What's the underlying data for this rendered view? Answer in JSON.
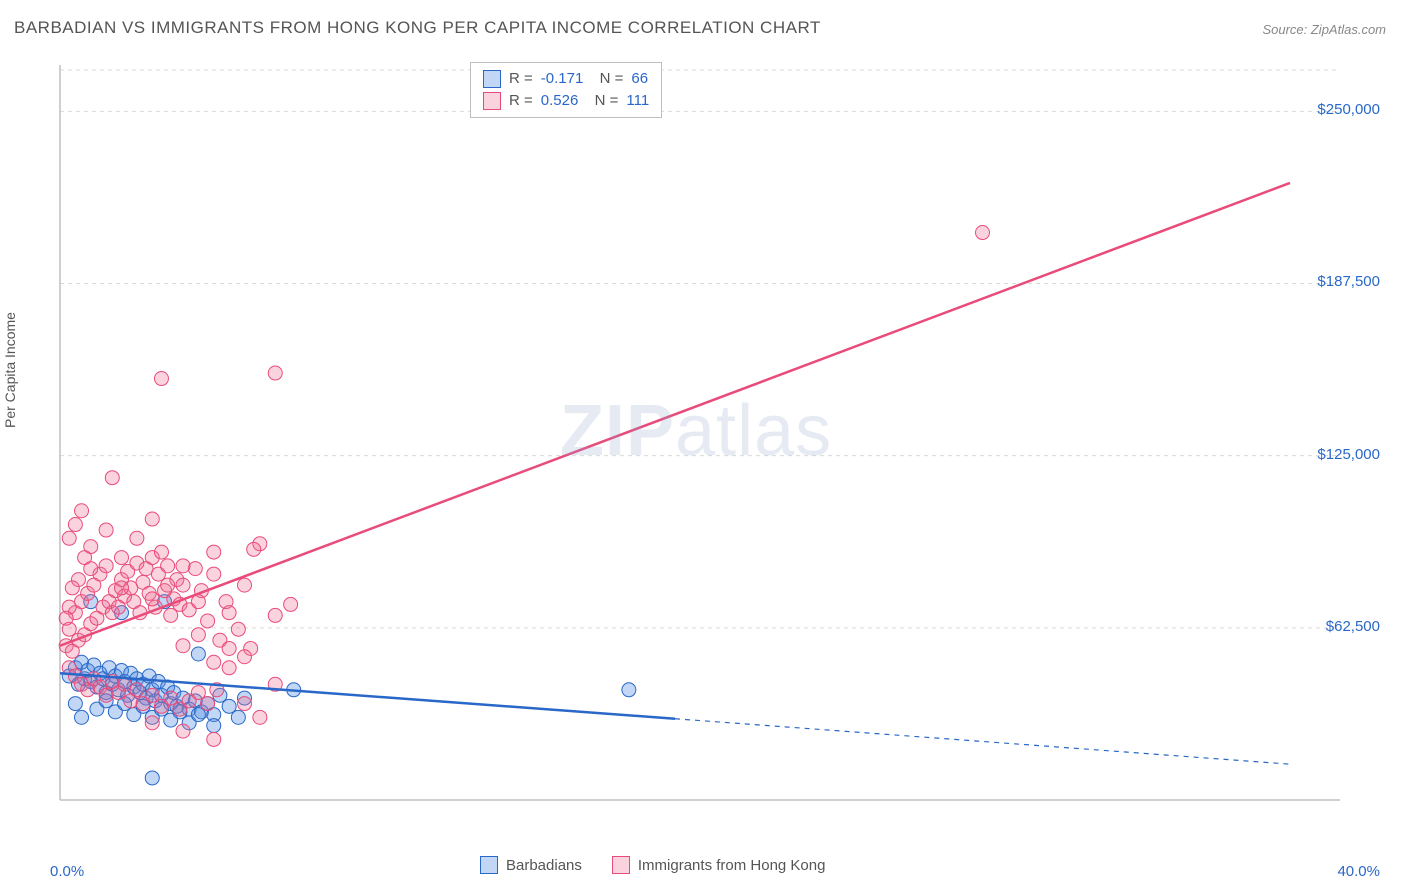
{
  "title": "BARBADIAN VS IMMIGRANTS FROM HONG KONG PER CAPITA INCOME CORRELATION CHART",
  "source": "Source: ZipAtlas.com",
  "watermark_a": "ZIP",
  "watermark_b": "atlas",
  "y_axis_label": "Per Capita Income",
  "chart": {
    "type": "scatter-with-regression",
    "background_color": "#ffffff",
    "grid_color": "#d9d9d9",
    "axis_color": "#bfbfbf",
    "xlim": [
      0,
      40
    ],
    "ylim": [
      0,
      265000
    ],
    "x_ticks": [
      {
        "v": 0,
        "label": "0.0%"
      },
      {
        "v": 40,
        "label": "40.0%"
      }
    ],
    "y_ticks": [
      {
        "v": 62500,
        "label": "$62,500"
      },
      {
        "v": 125000,
        "label": "$125,000"
      },
      {
        "v": 187500,
        "label": "$187,500"
      },
      {
        "v": 250000,
        "label": "$250,000"
      }
    ],
    "y_gridlines": [
      62500,
      125000,
      187500,
      250000,
      265000
    ],
    "series": [
      {
        "name": "Barbadians",
        "color_fill": "rgba(80,140,225,0.35)",
        "color_stroke": "#2968c8",
        "marker_radius": 7,
        "R": "-0.171",
        "N": "66",
        "regression": {
          "color": "#2968c8",
          "width": 2.5,
          "x1": 0,
          "y1": 46000,
          "x2": 40,
          "y2": 13000,
          "solid_until_x": 20
        },
        "points": [
          [
            0.3,
            45000
          ],
          [
            0.5,
            48000
          ],
          [
            0.6,
            42000
          ],
          [
            0.7,
            50000
          ],
          [
            0.8,
            44000
          ],
          [
            0.9,
            47000
          ],
          [
            1.0,
            43000
          ],
          [
            1.1,
            49000
          ],
          [
            1.2,
            41000
          ],
          [
            1.3,
            46000
          ],
          [
            1.4,
            44000
          ],
          [
            1.5,
            39000
          ],
          [
            1.6,
            48000
          ],
          [
            1.7,
            42000
          ],
          [
            1.8,
            45000
          ],
          [
            1.9,
            40000
          ],
          [
            2.0,
            47000
          ],
          [
            2.1,
            43000
          ],
          [
            2.2,
            38000
          ],
          [
            2.3,
            46000
          ],
          [
            2.4,
            41000
          ],
          [
            2.5,
            44000
          ],
          [
            2.6,
            39000
          ],
          [
            2.7,
            42000
          ],
          [
            2.8,
            37000
          ],
          [
            2.9,
            45000
          ],
          [
            3.0,
            40000
          ],
          [
            3.1,
            36000
          ],
          [
            3.2,
            43000
          ],
          [
            3.3,
            38000
          ],
          [
            3.4,
            72000
          ],
          [
            3.5,
            41000
          ],
          [
            3.6,
            35000
          ],
          [
            3.7,
            39000
          ],
          [
            3.8,
            34000
          ],
          [
            4.0,
            37000
          ],
          [
            4.2,
            33000
          ],
          [
            4.4,
            36000
          ],
          [
            4.5,
            53000
          ],
          [
            4.6,
            32000
          ],
          [
            4.8,
            35000
          ],
          [
            5.0,
            31000
          ],
          [
            5.2,
            38000
          ],
          [
            5.5,
            34000
          ],
          [
            5.8,
            30000
          ],
          [
            6.0,
            37000
          ],
          [
            7.6,
            40000
          ],
          [
            3.0,
            8000
          ],
          [
            18.5,
            40000
          ],
          [
            1.0,
            72000
          ],
          [
            2.0,
            68000
          ],
          [
            0.5,
            35000
          ],
          [
            0.7,
            30000
          ],
          [
            1.2,
            33000
          ],
          [
            1.5,
            36000
          ],
          [
            1.8,
            32000
          ],
          [
            2.1,
            35000
          ],
          [
            2.4,
            31000
          ],
          [
            2.7,
            34000
          ],
          [
            3.0,
            30000
          ],
          [
            3.3,
            33000
          ],
          [
            3.6,
            29000
          ],
          [
            3.9,
            32000
          ],
          [
            4.2,
            28000
          ],
          [
            4.5,
            31000
          ],
          [
            5.0,
            27000
          ]
        ]
      },
      {
        "name": "Immigrants from Hong Kong",
        "color_fill": "rgba(240,110,150,0.30)",
        "color_stroke": "#e94b7a",
        "marker_radius": 7,
        "R": "0.526",
        "N": "111",
        "regression": {
          "color": "#e94b7a",
          "width": 2.5,
          "x1": 0,
          "y1": 56000,
          "x2": 40,
          "y2": 224000,
          "solid_until_x": 40
        },
        "points": [
          [
            0.2,
            56000
          ],
          [
            0.3,
            62000
          ],
          [
            0.4,
            54000
          ],
          [
            0.5,
            68000
          ],
          [
            0.6,
            58000
          ],
          [
            0.7,
            72000
          ],
          [
            0.8,
            60000
          ],
          [
            0.9,
            75000
          ],
          [
            1.0,
            64000
          ],
          [
            1.1,
            78000
          ],
          [
            1.2,
            66000
          ],
          [
            1.3,
            82000
          ],
          [
            1.4,
            70000
          ],
          [
            1.5,
            85000
          ],
          [
            1.6,
            72000
          ],
          [
            1.7,
            68000
          ],
          [
            1.8,
            76000
          ],
          [
            1.9,
            70000
          ],
          [
            2.0,
            80000
          ],
          [
            2.1,
            74000
          ],
          [
            2.2,
            83000
          ],
          [
            2.3,
            77000
          ],
          [
            2.4,
            72000
          ],
          [
            2.5,
            86000
          ],
          [
            2.6,
            68000
          ],
          [
            2.7,
            79000
          ],
          [
            2.8,
            84000
          ],
          [
            2.9,
            75000
          ],
          [
            3.0,
            88000
          ],
          [
            3.1,
            70000
          ],
          [
            3.2,
            82000
          ],
          [
            3.3,
            90000
          ],
          [
            3.4,
            76000
          ],
          [
            3.5,
            85000
          ],
          [
            3.6,
            67000
          ],
          [
            3.7,
            73000
          ],
          [
            3.8,
            80000
          ],
          [
            3.9,
            71000
          ],
          [
            4.0,
            78000
          ],
          [
            4.2,
            69000
          ],
          [
            4.4,
            84000
          ],
          [
            4.5,
            60000
          ],
          [
            4.6,
            76000
          ],
          [
            4.8,
            65000
          ],
          [
            5.0,
            82000
          ],
          [
            5.2,
            58000
          ],
          [
            5.4,
            72000
          ],
          [
            5.5,
            68000
          ],
          [
            5.8,
            62000
          ],
          [
            6.0,
            78000
          ],
          [
            6.2,
            55000
          ],
          [
            6.5,
            93000
          ],
          [
            7.0,
            67000
          ],
          [
            7.5,
            71000
          ],
          [
            0.3,
            95000
          ],
          [
            0.5,
            100000
          ],
          [
            0.7,
            105000
          ],
          [
            1.0,
            92000
          ],
          [
            1.5,
            98000
          ],
          [
            1.7,
            117000
          ],
          [
            2.0,
            88000
          ],
          [
            2.5,
            95000
          ],
          [
            3.0,
            102000
          ],
          [
            3.5,
            78000
          ],
          [
            4.0,
            85000
          ],
          [
            4.5,
            72000
          ],
          [
            5.0,
            90000
          ],
          [
            0.3,
            48000
          ],
          [
            0.5,
            45000
          ],
          [
            0.7,
            42000
          ],
          [
            0.9,
            40000
          ],
          [
            1.1,
            44000
          ],
          [
            1.3,
            41000
          ],
          [
            1.5,
            38000
          ],
          [
            1.7,
            43000
          ],
          [
            1.9,
            39000
          ],
          [
            2.1,
            42000
          ],
          [
            2.3,
            36000
          ],
          [
            2.5,
            40000
          ],
          [
            2.7,
            35000
          ],
          [
            3.0,
            38000
          ],
          [
            3.3,
            34000
          ],
          [
            3.6,
            37000
          ],
          [
            3.9,
            33000
          ],
          [
            4.2,
            36000
          ],
          [
            4.5,
            39000
          ],
          [
            4.8,
            35000
          ],
          [
            5.1,
            40000
          ],
          [
            5.5,
            48000
          ],
          [
            6.0,
            35000
          ],
          [
            6.5,
            30000
          ],
          [
            3.3,
            153000
          ],
          [
            7.0,
            155000
          ],
          [
            6.3,
            91000
          ],
          [
            5.0,
            50000
          ],
          [
            4.0,
            56000
          ],
          [
            3.0,
            73000
          ],
          [
            2.0,
            77000
          ],
          [
            1.0,
            84000
          ],
          [
            0.8,
            88000
          ],
          [
            0.6,
            80000
          ],
          [
            0.4,
            77000
          ],
          [
            0.3,
            70000
          ],
          [
            0.2,
            66000
          ],
          [
            30.0,
            206000
          ],
          [
            3.0,
            28000
          ],
          [
            4.0,
            25000
          ],
          [
            5.0,
            22000
          ],
          [
            5.5,
            55000
          ],
          [
            6.0,
            52000
          ],
          [
            7.0,
            42000
          ]
        ]
      }
    ]
  },
  "bottom_legend": [
    {
      "label": "Barbadians",
      "fill": "rgba(80,140,225,0.35)",
      "stroke": "#2968c8"
    },
    {
      "label": "Immigrants from Hong Kong",
      "fill": "rgba(240,110,150,0.30)",
      "stroke": "#e94b7a"
    }
  ]
}
